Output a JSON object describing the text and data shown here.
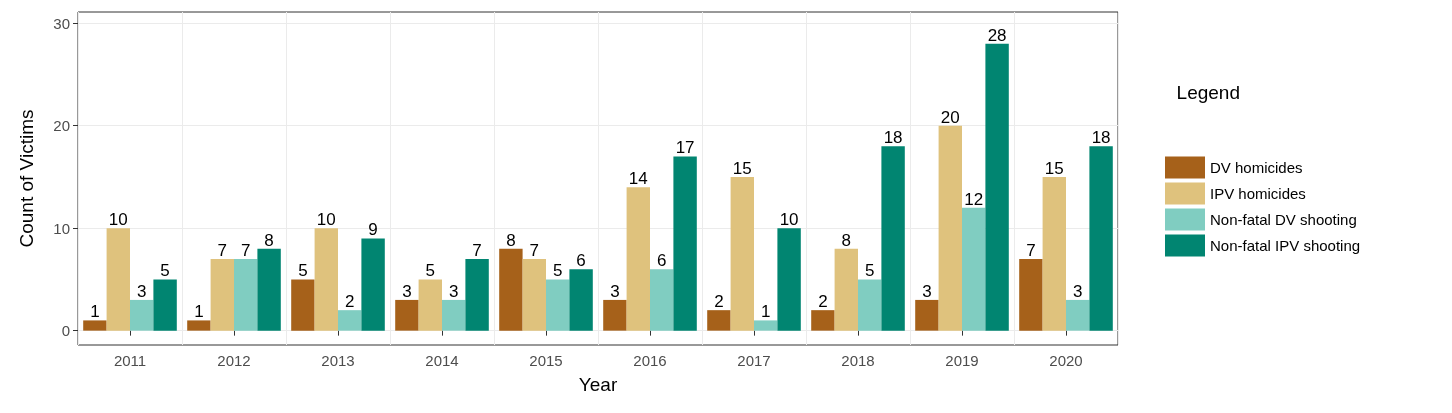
{
  "chart_data": {
    "type": "bar",
    "xlabel": "Year",
    "ylabel": "Count of Victims",
    "legend_title": "Legend",
    "categories": [
      "2011",
      "2012",
      "2013",
      "2014",
      "2015",
      "2016",
      "2017",
      "2018",
      "2019",
      "2020"
    ],
    "series": [
      {
        "name": "DV homicides",
        "color": "#a6611a",
        "values": [
          1,
          1,
          5,
          3,
          8,
          3,
          2,
          2,
          3,
          7
        ]
      },
      {
        "name": "IPV homicides",
        "color": "#dfc27d",
        "values": [
          10,
          7,
          10,
          5,
          7,
          14,
          15,
          8,
          20,
          15
        ]
      },
      {
        "name": "Non-fatal DV shooting",
        "color": "#80cdc1",
        "values": [
          3,
          7,
          2,
          3,
          5,
          6,
          1,
          5,
          12,
          3
        ]
      },
      {
        "name": "Non-fatal IPV shooting",
        "color": "#018571",
        "values": [
          5,
          8,
          9,
          7,
          6,
          17,
          10,
          18,
          28,
          18
        ]
      }
    ],
    "ylim": [
      -1.4,
      31.1
    ],
    "yticks": [
      0,
      10,
      20,
      30
    ],
    "grid": true,
    "legend": "right",
    "data_labels": true
  }
}
